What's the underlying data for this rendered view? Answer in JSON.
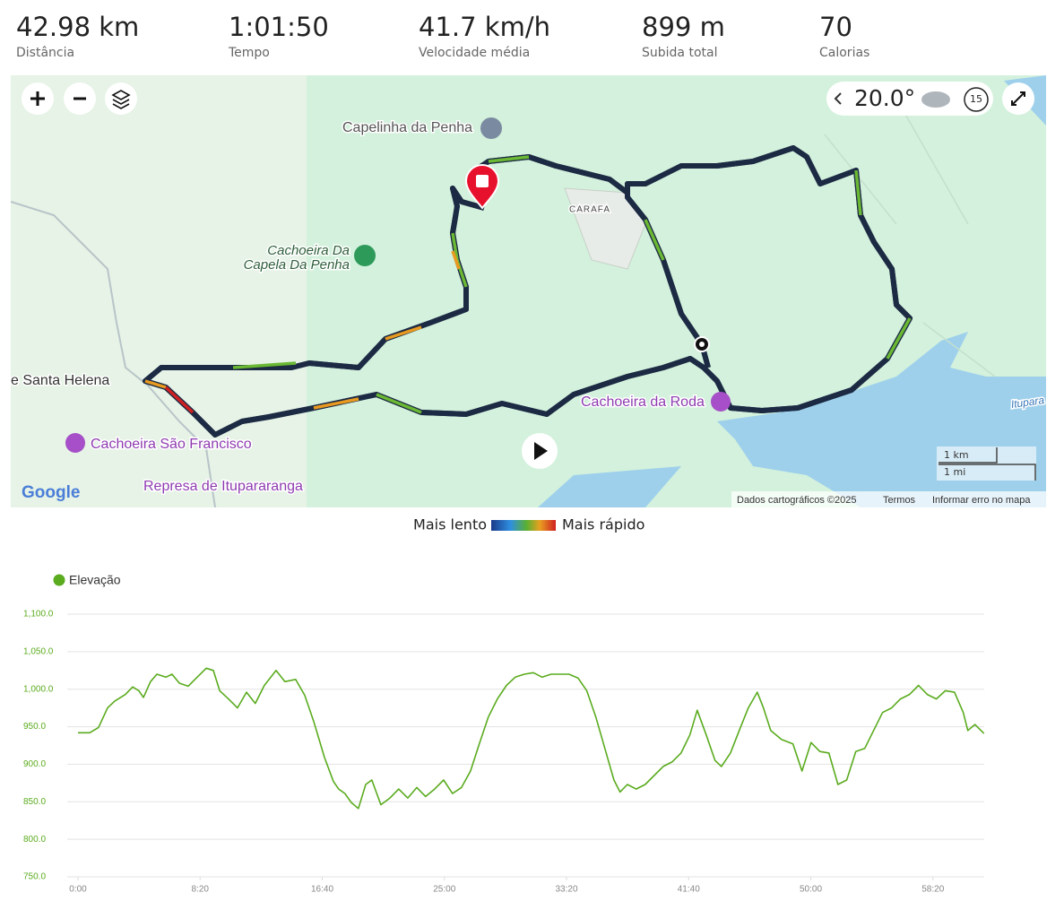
{
  "stats": [
    {
      "value": "42.98 km",
      "label": "Distância"
    },
    {
      "value": "1:01:50",
      "label": "Tempo"
    },
    {
      "value": "41.7 km/h",
      "label": "Velocidade média"
    },
    {
      "value": "899 m",
      "label": "Subida total"
    },
    {
      "value": "70",
      "label": "Calorias"
    }
  ],
  "map": {
    "places": [
      "Capelinha da Penha",
      "CARAFA",
      "Cachoeira Da",
      "Capela Da Penha",
      "e Santa Helena",
      "Cachoeira São Francisco",
      "Cachoeira da Roda",
      "Represa de Itupararanga",
      "Itupara"
    ],
    "temperature": "20.0°",
    "time_window": "15",
    "logo": "Google",
    "scale": [
      "1 km",
      "1 mi"
    ],
    "footer": [
      "Dados cartográficos ©2025",
      "Termos",
      "Informar erro no mapa"
    ]
  },
  "speed_legend": {
    "slow": "Mais lento",
    "fast": "Mais rápido"
  },
  "chart_data": {
    "type": "line",
    "series": [
      {
        "name": "Elevação",
        "color": "#5aab1e",
        "values": [
          942,
          942,
          949,
          975,
          984,
          993,
          1003,
          998,
          989,
          1010,
          1020,
          1016,
          1020,
          1008,
          1004,
          1016,
          1028,
          1025,
          998,
          987,
          975,
          996,
          981,
          1005,
          1025,
          1010,
          1013,
          992,
          957,
          909,
          877,
          867,
          861,
          849,
          841,
          873,
          879,
          846,
          855,
          867,
          855,
          869,
          857,
          867,
          879,
          861,
          869,
          891,
          927,
          963,
          987,
          1005,
          1016,
          1020,
          1022,
          1016,
          1020,
          1020,
          1020,
          1015,
          998,
          963,
          921,
          879,
          863,
          873,
          867,
          873,
          885,
          897,
          903,
          915,
          939,
          972,
          939,
          905,
          897,
          915,
          945,
          975,
          996,
          975,
          945,
          933,
          927,
          891,
          929,
          917,
          915,
          873,
          879,
          917,
          921,
          945,
          969,
          975,
          987,
          993,
          1005,
          993,
          987,
          998,
          996,
          969,
          945,
          953,
          941
        ]
      }
    ],
    "x": [
      0,
      48,
      84,
      121,
      150,
      194,
      224,
      249,
      268,
      297,
      323,
      360,
      385,
      415,
      451,
      488,
      525,
      554,
      580,
      616,
      653,
      690,
      726,
      763,
      811,
      847,
      891,
      928,
      965,
      1009,
      1046,
      1067,
      1093,
      1119,
      1148,
      1178,
      1203,
      1240,
      1277,
      1313,
      1350,
      1387,
      1423,
      1460,
      1497,
      1533,
      1570,
      1607,
      1643,
      1680,
      1717,
      1754,
      1790,
      1827,
      1864,
      1900,
      1937,
      1973,
      2010,
      2047,
      2083,
      2120,
      2157,
      2194,
      2219,
      2249,
      2285,
      2322,
      2359,
      2396,
      2432,
      2469,
      2505,
      2535,
      2572,
      2608,
      2634,
      2671,
      2707,
      2744,
      2781,
      2806,
      2836,
      2880,
      2927,
      2964,
      3001,
      3037,
      3074,
      3111,
      3147,
      3184,
      3221,
      3257,
      3294,
      3331,
      3367,
      3404,
      3441,
      3477,
      3514,
      3551,
      3588,
      3624,
      3643,
      3672,
      3709
    ],
    "xlim": [
      0,
      3710
    ],
    "xticks": [
      {
        "value": 0,
        "label": "0:00"
      },
      {
        "value": 500,
        "label": "8:20"
      },
      {
        "value": 1000,
        "label": "16:40"
      },
      {
        "value": 1500,
        "label": "25:00"
      },
      {
        "value": 2000,
        "label": "33:20"
      },
      {
        "value": 2500,
        "label": "41:40"
      },
      {
        "value": 3000,
        "label": "50:00"
      },
      {
        "value": 3500,
        "label": "58:20"
      }
    ],
    "ylim": [
      750,
      1100
    ],
    "yticks": [
      {
        "value": 750,
        "label": "750.0"
      },
      {
        "value": 800,
        "label": "800.0"
      },
      {
        "value": 850,
        "label": "850.0"
      },
      {
        "value": 900,
        "label": "900.0"
      },
      {
        "value": 950,
        "label": "950.0"
      },
      {
        "value": 1000,
        "label": "1,000.0"
      },
      {
        "value": 1050,
        "label": "1,050.0"
      },
      {
        "value": 1100,
        "label": "1,100.0"
      }
    ],
    "grid": true,
    "legend": "top-left"
  }
}
